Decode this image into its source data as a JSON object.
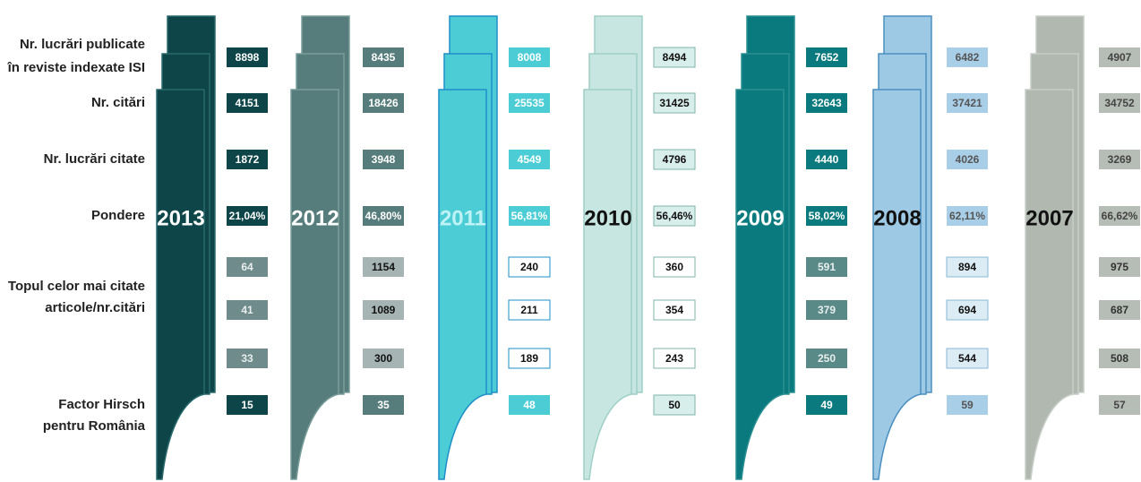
{
  "row_labels": [
    [
      "Nr. lucrări publicate",
      "în reviste indexate ISI"
    ],
    [
      "Nr. citări"
    ],
    [
      "Nr. lucrări citate"
    ],
    [
      "Pondere"
    ],
    [
      "Topul celor mai citate",
      "articole/nr.citări"
    ],
    [
      "Factor Hirsch",
      "pentru România"
    ]
  ],
  "columns": [
    {
      "year": "2013",
      "values": [
        "8898",
        "4151",
        "1872",
        "21,04%",
        "64",
        "41",
        "33",
        "15"
      ]
    },
    {
      "year": "2012",
      "values": [
        "8435",
        "18426",
        "3948",
        "46,80%",
        "1154",
        "1089",
        "300",
        "35"
      ]
    },
    {
      "year": "2011",
      "values": [
        "8008",
        "25535",
        "4549",
        "56,81%",
        "240",
        "211",
        "189",
        "48"
      ]
    },
    {
      "year": "2010",
      "values": [
        "8494",
        "31425",
        "4796",
        "56,46%",
        "360",
        "354",
        "243",
        "50"
      ]
    },
    {
      "year": "2009",
      "values": [
        "7652",
        "32643",
        "4440",
        "58,02%",
        "591",
        "379",
        "250",
        "49"
      ]
    },
    {
      "year": "2008",
      "values": [
        "6482",
        "37421",
        "4026",
        "62,11%",
        "894",
        "694",
        "544",
        "59"
      ]
    },
    {
      "year": "2007",
      "values": [
        "4907",
        "34752",
        "3269",
        "66,62%",
        "975",
        "687",
        "508",
        "57"
      ]
    }
  ]
}
